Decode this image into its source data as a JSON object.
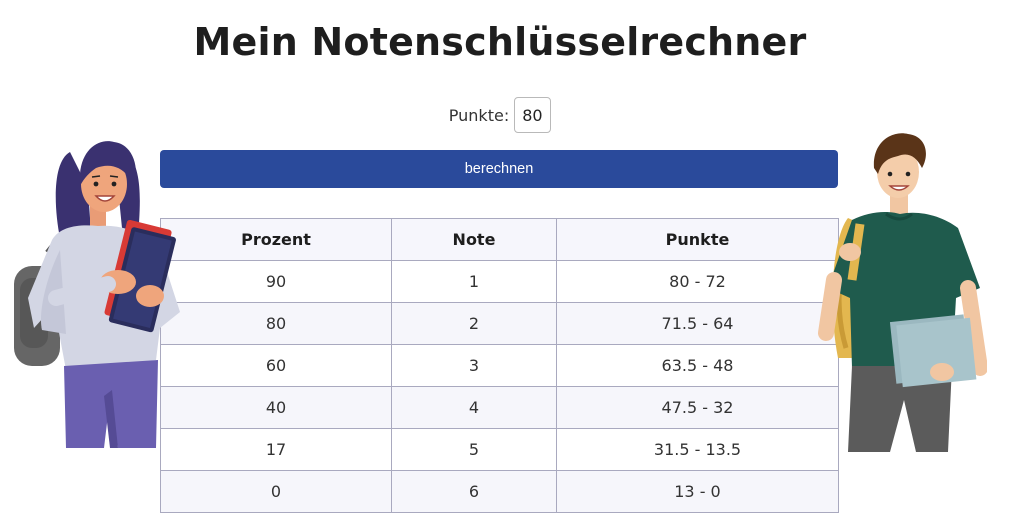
{
  "page": {
    "title": "Mein Notenschlüsselrechner"
  },
  "form": {
    "points_label": "Punkte:",
    "points_value": "80",
    "button_label": "berechnen"
  },
  "table": {
    "headers": [
      "Prozent",
      "Note",
      "Punkte"
    ],
    "rows": [
      [
        "90",
        "1",
        "80 - 72"
      ],
      [
        "80",
        "2",
        "71.5 - 64"
      ],
      [
        "60",
        "3",
        "63.5 - 48"
      ],
      [
        "40",
        "4",
        "47.5 - 32"
      ],
      [
        "17",
        "5",
        "31.5 - 13.5"
      ],
      [
        "0",
        "6",
        "13 - 0"
      ]
    ]
  },
  "illustrations": {
    "left": "student-girl-with-books-illustration",
    "right": "student-boy-with-backpack-illustration"
  },
  "colors": {
    "button": "#2a4a9b",
    "table_border": "#a9a9bf",
    "table_stripe": "#f6f6fb"
  }
}
